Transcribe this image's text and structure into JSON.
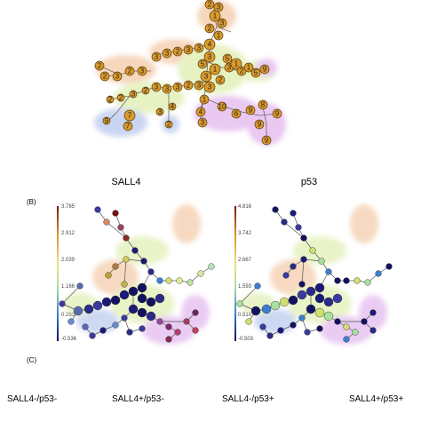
{
  "panels": {
    "b_label": "(B)",
    "c_label": "(C)"
  },
  "maps": [
    {
      "title": "SALL4",
      "scale_ticks": [
        "3.785",
        "2.912",
        "2.039",
        "1.166",
        "0.293",
        "-0.536"
      ]
    },
    {
      "title": "p53",
      "scale_ticks": [
        "4.816",
        "3.742",
        "2.667",
        "1.593",
        "0.519",
        "-0.503"
      ]
    }
  ],
  "groups": [
    "SALL4-/p53-",
    "SALL4+/p53-",
    "SALL4-/p53+",
    "SALL4+/p53+"
  ],
  "colors": {
    "node_fill": "#d99a2b",
    "node_stroke": "#5a3a10",
    "halo_orange": "#f3c9a6",
    "halo_green": "#dfeeb0",
    "halo_purple": "#e2b6ee",
    "halo_blue": "#b9c8ef",
    "edge": "#6a6a6a",
    "scale": [
      "#7a1010",
      "#d7902a",
      "#f0e080",
      "#a8e0a0",
      "#3a7fd0",
      "#12125e"
    ]
  }
}
